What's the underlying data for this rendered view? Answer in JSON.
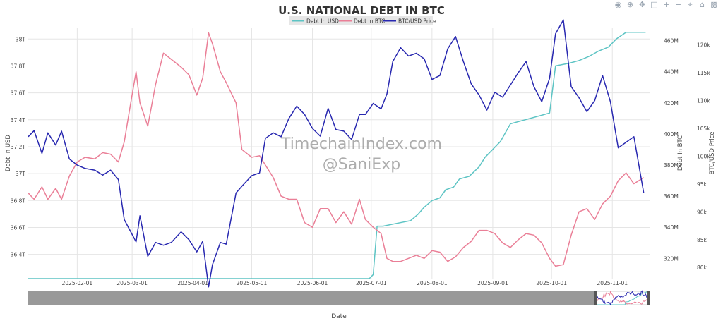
{
  "chart_data": {
    "type": "line",
    "title": "U.S. NATIONAL DEBT IN BTC",
    "xlabel": "Date",
    "y_left_label": "Debt In USD",
    "y_right1_label": "Debt In BTC",
    "y_right2_label": "BTC/USD Price",
    "x_ticks": [
      "2025-02-01",
      "2025-03-01",
      "2025-04-01",
      "2025-05-01",
      "2025-06-01",
      "2025-07-01",
      "2025-08-01",
      "2025-09-01",
      "2025-10-01",
      "2025-11-01"
    ],
    "y_left_ticks": [
      "36.4T",
      "36.6T",
      "36.8T",
      "37T",
      "37.2T",
      "37.4T",
      "37.6T",
      "37.8T",
      "38T"
    ],
    "y_right1_ticks": [
      "320M",
      "340M",
      "360M",
      "380M",
      "400M",
      "420M",
      "440M",
      "460M"
    ],
    "y_right2_ticks": [
      "80k",
      "85k",
      "90k",
      "95k",
      "100k",
      "105k",
      "110k",
      "115k",
      "120k"
    ],
    "x_range": [
      "2025-01-07",
      "2025-11-20"
    ],
    "ylim_left": [
      36.22,
      38.08
    ],
    "ylim_right1": [
      307,
      468
    ],
    "ylim_right2": [
      78,
      123
    ],
    "legend_position": "top-center",
    "watermark": [
      "TimechainIndex.com",
      "@SaniExp"
    ],
    "series": [
      {
        "name": "Debt In USD",
        "color": "#5dc4c4",
        "axis": "left",
        "points": [
          [
            "2025-01-07",
            36.22
          ],
          [
            "2025-02-01",
            36.22
          ],
          [
            "2025-03-01",
            36.22
          ],
          [
            "2025-04-01",
            36.22
          ],
          [
            "2025-05-01",
            36.22
          ],
          [
            "2025-06-01",
            36.22
          ],
          [
            "2025-06-30",
            36.22
          ],
          [
            "2025-07-02",
            36.25
          ],
          [
            "2025-07-04",
            36.61
          ],
          [
            "2025-07-07",
            36.61
          ],
          [
            "2025-07-14",
            36.63
          ],
          [
            "2025-07-21",
            36.65
          ],
          [
            "2025-07-25",
            36.7
          ],
          [
            "2025-07-28",
            36.75
          ],
          [
            "2025-08-01",
            36.8
          ],
          [
            "2025-08-05",
            36.82
          ],
          [
            "2025-08-08",
            36.88
          ],
          [
            "2025-08-12",
            36.9
          ],
          [
            "2025-08-15",
            36.96
          ],
          [
            "2025-08-20",
            36.98
          ],
          [
            "2025-08-25",
            37.05
          ],
          [
            "2025-08-28",
            37.12
          ],
          [
            "2025-09-01",
            37.18
          ],
          [
            "2025-09-05",
            37.24
          ],
          [
            "2025-09-10",
            37.37
          ],
          [
            "2025-09-15",
            37.39
          ],
          [
            "2025-09-20",
            37.41
          ],
          [
            "2025-09-25",
            37.43
          ],
          [
            "2025-09-30",
            37.45
          ],
          [
            "2025-10-03",
            37.8
          ],
          [
            "2025-10-10",
            37.82
          ],
          [
            "2025-10-15",
            37.84
          ],
          [
            "2025-10-20",
            37.87
          ],
          [
            "2025-10-25",
            37.91
          ],
          [
            "2025-10-30",
            37.94
          ],
          [
            "2025-11-03",
            38.0
          ],
          [
            "2025-11-08",
            38.05
          ],
          [
            "2025-11-18",
            38.05
          ]
        ]
      },
      {
        "name": "Debt In BTC",
        "color": "#ea7f97",
        "axis": "right1",
        "points": [
          [
            "2025-01-07",
            362
          ],
          [
            "2025-01-10",
            358
          ],
          [
            "2025-01-14",
            366
          ],
          [
            "2025-01-17",
            358
          ],
          [
            "2025-01-21",
            365
          ],
          [
            "2025-01-24",
            358
          ],
          [
            "2025-01-28",
            373
          ],
          [
            "2025-02-01",
            382
          ],
          [
            "2025-02-05",
            385
          ],
          [
            "2025-02-10",
            384
          ],
          [
            "2025-02-14",
            388
          ],
          [
            "2025-02-18",
            387
          ],
          [
            "2025-02-22",
            382
          ],
          [
            "2025-02-25",
            395
          ],
          [
            "2025-02-28",
            418
          ],
          [
            "2025-03-03",
            440
          ],
          [
            "2025-03-05",
            420
          ],
          [
            "2025-03-09",
            405
          ],
          [
            "2025-03-13",
            432
          ],
          [
            "2025-03-17",
            452
          ],
          [
            "2025-03-21",
            448
          ],
          [
            "2025-03-26",
            443
          ],
          [
            "2025-03-30",
            438
          ],
          [
            "2025-04-03",
            425
          ],
          [
            "2025-04-06",
            436
          ],
          [
            "2025-04-09",
            465
          ],
          [
            "2025-04-11",
            458
          ],
          [
            "2025-04-15",
            440
          ],
          [
            "2025-04-18",
            433
          ],
          [
            "2025-04-23",
            420
          ],
          [
            "2025-04-26",
            390
          ],
          [
            "2025-05-01",
            385
          ],
          [
            "2025-05-05",
            386
          ],
          [
            "2025-05-08",
            380
          ],
          [
            "2025-05-12",
            372
          ],
          [
            "2025-05-16",
            360
          ],
          [
            "2025-05-20",
            358
          ],
          [
            "2025-05-24",
            358
          ],
          [
            "2025-05-28",
            343
          ],
          [
            "2025-06-01",
            340
          ],
          [
            "2025-06-05",
            352
          ],
          [
            "2025-06-09",
            352
          ],
          [
            "2025-06-13",
            343
          ],
          [
            "2025-06-17",
            350
          ],
          [
            "2025-06-21",
            342
          ],
          [
            "2025-06-25",
            358
          ],
          [
            "2025-06-28",
            345
          ],
          [
            "2025-07-02",
            340
          ],
          [
            "2025-07-06",
            336
          ],
          [
            "2025-07-09",
            320
          ],
          [
            "2025-07-12",
            318
          ],
          [
            "2025-07-16",
            318
          ],
          [
            "2025-07-20",
            320
          ],
          [
            "2025-07-24",
            322
          ],
          [
            "2025-07-28",
            320
          ],
          [
            "2025-08-01",
            325
          ],
          [
            "2025-08-05",
            324
          ],
          [
            "2025-08-09",
            318
          ],
          [
            "2025-08-13",
            321
          ],
          [
            "2025-08-17",
            327
          ],
          [
            "2025-08-21",
            331
          ],
          [
            "2025-08-25",
            338
          ],
          [
            "2025-08-29",
            338
          ],
          [
            "2025-09-02",
            336
          ],
          [
            "2025-09-06",
            330
          ],
          [
            "2025-09-10",
            327
          ],
          [
            "2025-09-14",
            332
          ],
          [
            "2025-09-18",
            336
          ],
          [
            "2025-09-22",
            335
          ],
          [
            "2025-09-26",
            330
          ],
          [
            "2025-09-30",
            320
          ],
          [
            "2025-10-03",
            315
          ],
          [
            "2025-10-07",
            316
          ],
          [
            "2025-10-11",
            335
          ],
          [
            "2025-10-15",
            350
          ],
          [
            "2025-10-19",
            352
          ],
          [
            "2025-10-23",
            345
          ],
          [
            "2025-10-27",
            355
          ],
          [
            "2025-10-31",
            360
          ],
          [
            "2025-11-04",
            370
          ],
          [
            "2025-11-08",
            375
          ],
          [
            "2025-11-12",
            368
          ],
          [
            "2025-11-17",
            372
          ]
        ]
      },
      {
        "name": "BTC/USD Price",
        "color": "#2828b0",
        "axis": "right2",
        "points": [
          [
            "2025-01-07",
            103.5
          ],
          [
            "2025-01-10",
            104.6
          ],
          [
            "2025-01-14",
            100.5
          ],
          [
            "2025-01-17",
            104.2
          ],
          [
            "2025-01-21",
            102.0
          ],
          [
            "2025-01-24",
            104.5
          ],
          [
            "2025-01-28",
            99.5
          ],
          [
            "2025-02-01",
            98.4
          ],
          [
            "2025-02-05",
            97.8
          ],
          [
            "2025-02-10",
            97.5
          ],
          [
            "2025-02-14",
            96.6
          ],
          [
            "2025-02-18",
            97.5
          ],
          [
            "2025-02-22",
            95.8
          ],
          [
            "2025-02-25",
            88.6
          ],
          [
            "2025-03-03",
            84.6
          ],
          [
            "2025-03-05",
            89.3
          ],
          [
            "2025-03-09",
            82.0
          ],
          [
            "2025-03-13",
            84.5
          ],
          [
            "2025-03-17",
            84.0
          ],
          [
            "2025-03-21",
            84.5
          ],
          [
            "2025-03-26",
            86.4
          ],
          [
            "2025-03-30",
            85.0
          ],
          [
            "2025-04-03",
            82.8
          ],
          [
            "2025-04-06",
            84.7
          ],
          [
            "2025-04-09",
            76.5
          ],
          [
            "2025-04-11",
            80.5
          ],
          [
            "2025-04-15",
            84.5
          ],
          [
            "2025-04-18",
            84.2
          ],
          [
            "2025-04-23",
            93.4
          ],
          [
            "2025-04-26",
            94.6
          ],
          [
            "2025-05-01",
            96.5
          ],
          [
            "2025-05-05",
            97.0
          ],
          [
            "2025-05-08",
            103.2
          ],
          [
            "2025-05-12",
            104.2
          ],
          [
            "2025-05-16",
            103.5
          ],
          [
            "2025-05-20",
            106.8
          ],
          [
            "2025-05-24",
            109.0
          ],
          [
            "2025-05-28",
            107.5
          ],
          [
            "2025-06-01",
            105.0
          ],
          [
            "2025-06-05",
            103.6
          ],
          [
            "2025-06-09",
            108.6
          ],
          [
            "2025-06-13",
            104.8
          ],
          [
            "2025-06-17",
            104.5
          ],
          [
            "2025-06-21",
            103.0
          ],
          [
            "2025-06-25",
            107.5
          ],
          [
            "2025-06-28",
            107.5
          ],
          [
            "2025-07-02",
            109.5
          ],
          [
            "2025-07-06",
            108.5
          ],
          [
            "2025-07-09",
            111.2
          ],
          [
            "2025-07-12",
            117.0
          ],
          [
            "2025-07-16",
            119.5
          ],
          [
            "2025-07-20",
            118.0
          ],
          [
            "2025-07-24",
            118.5
          ],
          [
            "2025-07-28",
            117.5
          ],
          [
            "2025-08-01",
            113.8
          ],
          [
            "2025-08-05",
            114.5
          ],
          [
            "2025-08-09",
            119.3
          ],
          [
            "2025-08-13",
            121.5
          ],
          [
            "2025-08-17",
            117.0
          ],
          [
            "2025-08-21",
            113.0
          ],
          [
            "2025-08-25",
            111.0
          ],
          [
            "2025-08-29",
            108.3
          ],
          [
            "2025-09-02",
            111.5
          ],
          [
            "2025-09-06",
            110.6
          ],
          [
            "2025-09-10",
            112.8
          ],
          [
            "2025-09-14",
            115.0
          ],
          [
            "2025-09-18",
            117.0
          ],
          [
            "2025-09-22",
            112.5
          ],
          [
            "2025-09-26",
            109.8
          ],
          [
            "2025-09-30",
            114.0
          ],
          [
            "2025-10-03",
            122.0
          ],
          [
            "2025-10-07",
            124.5
          ],
          [
            "2025-10-11",
            112.5
          ],
          [
            "2025-10-15",
            110.5
          ],
          [
            "2025-10-19",
            108.0
          ],
          [
            "2025-10-23",
            110.0
          ],
          [
            "2025-10-27",
            114.5
          ],
          [
            "2025-10-31",
            109.8
          ],
          [
            "2025-11-04",
            101.5
          ],
          [
            "2025-11-08",
            102.5
          ],
          [
            "2025-11-12",
            103.5
          ],
          [
            "2025-11-17",
            93.4
          ]
        ]
      }
    ]
  }
}
